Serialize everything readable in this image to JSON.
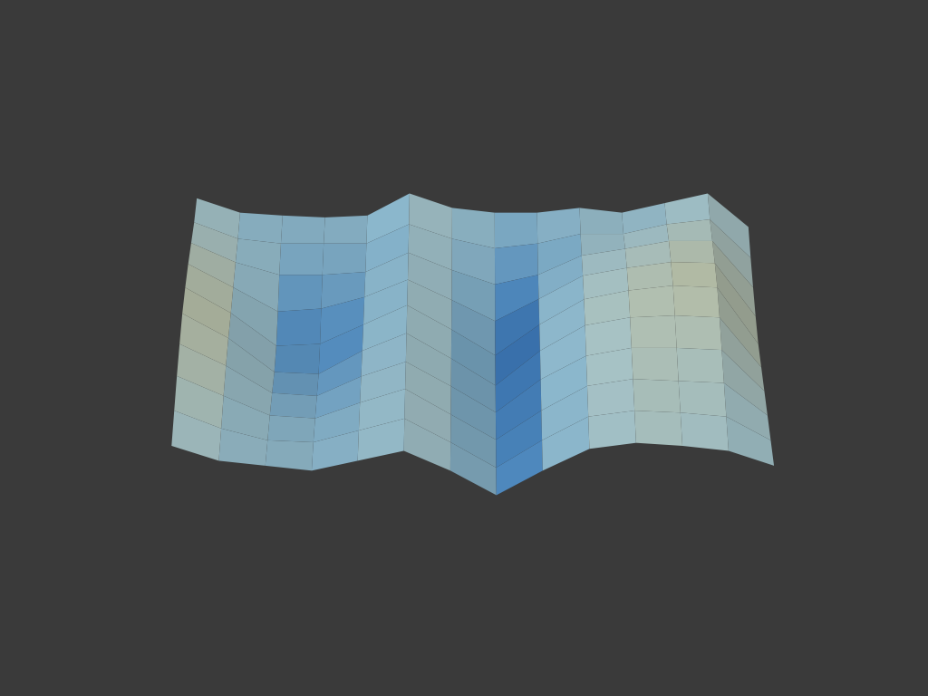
{
  "chart_data": {
    "type": "surface",
    "tick_labels": false,
    "x": [
      0,
      1,
      2,
      3,
      4,
      5,
      6,
      7,
      8,
      9,
      10,
      11,
      12,
      13
    ],
    "y": [
      0,
      1,
      2,
      3,
      4,
      5,
      6,
      7,
      8,
      9
    ],
    "zlim": [
      0,
      1
    ],
    "z": [
      [
        0.75,
        0.6,
        0.55,
        0.5,
        0.6,
        0.7,
        0.5,
        0.25,
        0.5,
        0.72,
        0.78,
        0.75,
        0.7,
        0.55
      ],
      [
        0.8,
        0.62,
        0.5,
        0.48,
        0.6,
        0.72,
        0.48,
        0.22,
        0.5,
        0.74,
        0.8,
        0.78,
        0.74,
        0.5
      ],
      [
        0.85,
        0.65,
        0.45,
        0.42,
        0.58,
        0.72,
        0.46,
        0.2,
        0.5,
        0.75,
        0.82,
        0.8,
        0.78,
        0.45
      ],
      [
        0.88,
        0.66,
        0.38,
        0.35,
        0.55,
        0.7,
        0.45,
        0.18,
        0.52,
        0.76,
        0.84,
        0.84,
        0.82,
        0.4
      ],
      [
        0.9,
        0.65,
        0.3,
        0.28,
        0.52,
        0.7,
        0.44,
        0.16,
        0.52,
        0.78,
        0.86,
        0.88,
        0.86,
        0.35
      ],
      [
        0.88,
        0.62,
        0.28,
        0.3,
        0.5,
        0.7,
        0.45,
        0.18,
        0.5,
        0.76,
        0.85,
        0.9,
        0.88,
        0.3
      ],
      [
        0.84,
        0.6,
        0.35,
        0.38,
        0.5,
        0.68,
        0.47,
        0.25,
        0.48,
        0.72,
        0.8,
        0.86,
        0.85,
        0.3
      ],
      [
        0.78,
        0.58,
        0.45,
        0.45,
        0.48,
        0.68,
        0.5,
        0.35,
        0.45,
        0.65,
        0.72,
        0.8,
        0.8,
        0.32
      ],
      [
        0.72,
        0.55,
        0.5,
        0.5,
        0.5,
        0.7,
        0.55,
        0.45,
        0.5,
        0.6,
        0.6,
        0.7,
        0.75,
        0.35
      ],
      [
        0.7,
        0.55,
        0.52,
        0.5,
        0.52,
        0.75,
        0.6,
        0.55,
        0.55,
        0.6,
        0.55,
        0.65,
        0.75,
        0.4
      ]
    ]
  }
}
